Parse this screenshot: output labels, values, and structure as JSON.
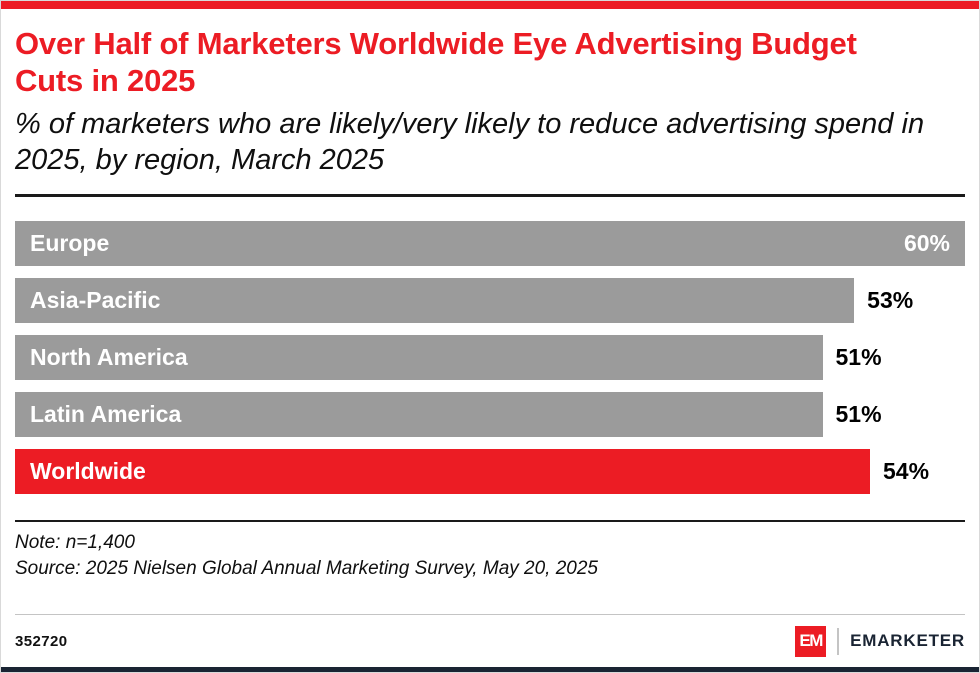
{
  "header": {
    "title": "Over Half of Marketers Worldwide Eye Advertising Budget Cuts in 2025",
    "subtitle": "% of marketers who are likely/very likely to reduce advertising spend in 2025, by region, March 2025"
  },
  "chart_data": {
    "type": "bar",
    "orientation": "horizontal",
    "categories": [
      "Europe",
      "Asia-Pacific",
      "North America",
      "Latin America",
      "Worldwide"
    ],
    "values": [
      60,
      53,
      51,
      51,
      54
    ],
    "value_labels": [
      "60%",
      "53%",
      "51%",
      "51%",
      "54%"
    ],
    "xlim": [
      0,
      60
    ],
    "grid": false,
    "legend": "none",
    "bar_colors": [
      "#9b9b9b",
      "#9b9b9b",
      "#9b9b9b",
      "#9b9b9b",
      "#ec1c24"
    ],
    "labels_inside": [
      true,
      false,
      false,
      false,
      false
    ],
    "title": "Over Half of Marketers Worldwide Eye Advertising Budget Cuts in 2025",
    "xlabel": "",
    "ylabel": ""
  },
  "notes": {
    "note": "Note: n=1,400",
    "source": "Source: 2025 Nielsen Global Annual Marketing Survey, May 20, 2025"
  },
  "footer": {
    "chart_id": "352720",
    "logo_mark": "EM",
    "logo_text": "EMARKETER"
  },
  "colors": {
    "accent_red": "#ec1c24",
    "bar_gray": "#9b9b9b",
    "brand_navy": "#1a2433"
  }
}
